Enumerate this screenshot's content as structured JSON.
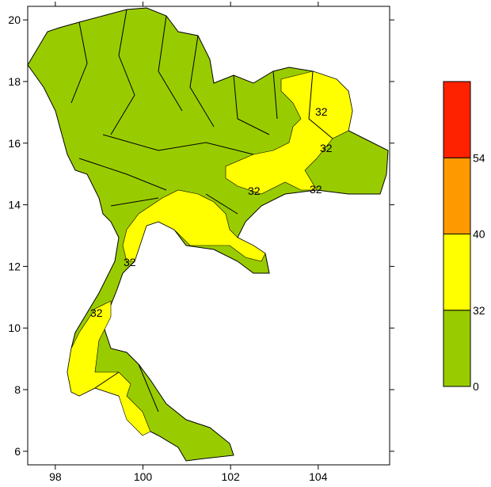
{
  "chart_data": {
    "type": "filled-map",
    "xlim": [
      97.37,
      105.63
    ],
    "ylim": [
      5.56,
      20.44
    ],
    "xticks": [
      98,
      100,
      102,
      104
    ],
    "yticks": [
      6,
      8,
      10,
      12,
      14,
      16,
      18,
      20
    ],
    "colorbar": {
      "levels": [
        0,
        32,
        40,
        54
      ],
      "colors": [
        "#99cc00",
        "#ffff00",
        "#ff9900",
        "#ff2200"
      ]
    },
    "contour_labels": [
      32,
      32,
      32,
      32,
      32,
      32
    ]
  }
}
